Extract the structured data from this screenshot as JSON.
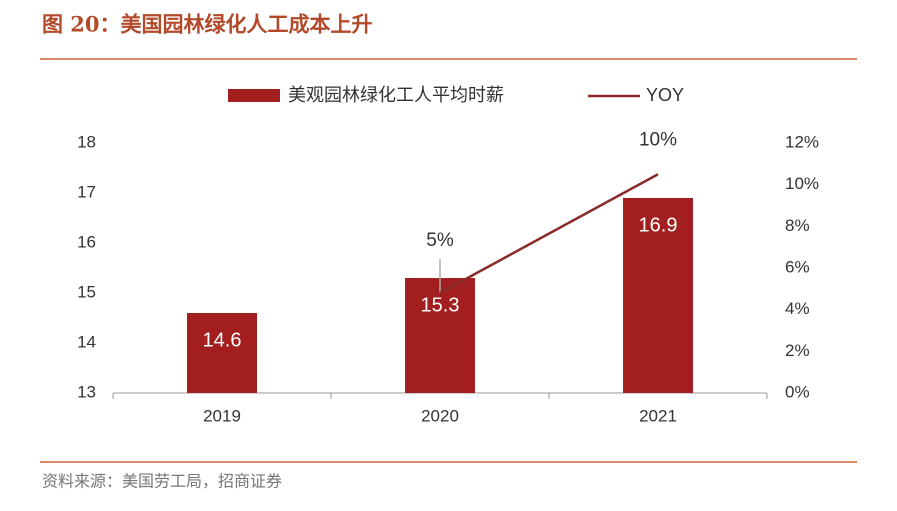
{
  "chart_data": {
    "type": "bar",
    "title": "图 20：美国园林绿化人工成本上升",
    "source": "资料来源：美国劳工局，招商证券",
    "categories": [
      "2019",
      "2020",
      "2021"
    ],
    "series": [
      {
        "name": "美观园林绿化工人平均时薪",
        "type": "bar",
        "color": "#a31f1f",
        "values": [
          14.6,
          15.3,
          16.9
        ]
      },
      {
        "name": "YOY",
        "type": "line",
        "axis": "y2",
        "color": "#8b2a2a",
        "values": [
          null,
          4.8,
          10.5
        ],
        "value_labels": [
          null,
          "5%",
          "10%"
        ]
      }
    ],
    "ylim": [
      13,
      18
    ],
    "yticks": [
      13,
      14,
      15,
      16,
      17,
      18
    ],
    "y2lim": [
      0,
      12
    ],
    "y2ticks": [
      {
        "value": 0,
        "label": "0%"
      },
      {
        "value": 2,
        "label": "2%"
      },
      {
        "value": 4,
        "label": "4%"
      },
      {
        "value": 6,
        "label": "6%"
      },
      {
        "value": 8,
        "label": "8%"
      },
      {
        "value": 10,
        "label": "10%"
      },
      {
        "value": 12,
        "label": "12%"
      }
    ]
  }
}
